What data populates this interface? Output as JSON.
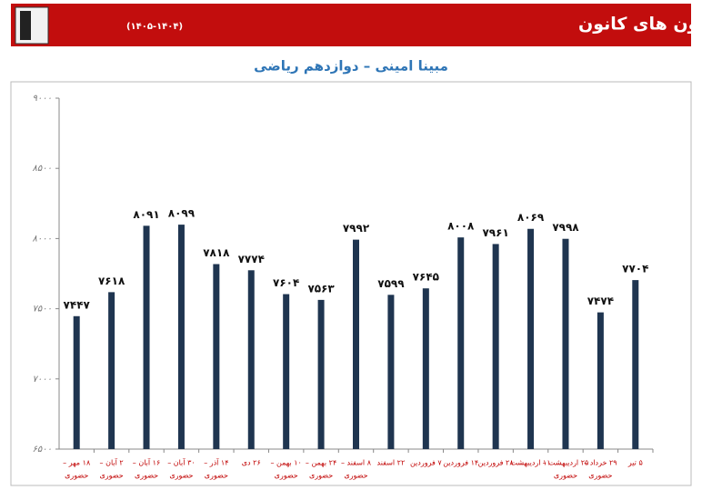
{
  "chart_data": {
    "type": "bar",
    "title": "نمودار تراز کل سال دوازدهم در آزمون های کانون",
    "title_note": "(۱۴۰۵-۱۴۰۴)",
    "subtitle": "مبینا امینی – دوازدهم ریاضی",
    "categories": [
      [
        "۱۸ مهر –",
        "حضوری"
      ],
      [
        "۲ آبان –",
        "حضوری"
      ],
      [
        "۱۶ آبان –",
        "حضوری"
      ],
      [
        "۳۰ آبان –",
        "حضوری"
      ],
      [
        "۱۴ آذر –",
        "حضوری"
      ],
      [
        "۲۶ دی"
      ],
      [
        "۱۰ بهمن –",
        "حضوری"
      ],
      [
        "۲۴ بهمن –",
        "حضوری"
      ],
      [
        "۸ اسفند –",
        "حضوری"
      ],
      [
        "۲۲ اسفند"
      ],
      [
        "۷ فروردین"
      ],
      [
        "۱۴ فروردین"
      ],
      [
        "۲۸ فروردین"
      ],
      [
        "۱۱ اردیبهشت"
      ],
      [
        "۲۵ اردیبهشت –",
        "حضوری"
      ],
      [
        "۲۹ خرداد –",
        "حضوری"
      ],
      [
        "۵ تیر"
      ]
    ],
    "values": [
      7447,
      7618,
      8091,
      8099,
      7818,
      7774,
      7604,
      7563,
      7992,
      7599,
      7645,
      8008,
      7961,
      8069,
      7998,
      7474,
      7704
    ],
    "value_labels": [
      "۷۴۴۷",
      "۷۶۱۸",
      "۸۰۹۱",
      "۸۰۹۹",
      "۷۸۱۸",
      "۷۷۷۴",
      "۷۶۰۴",
      "۷۵۶۳",
      "۷۹۹۲",
      "۷۵۹۹",
      "۷۶۴۵",
      "۸۰۰۸",
      "۷۹۶۱",
      "۸۰۶۹",
      "۷۹۹۸",
      "۷۴۷۴",
      "۷۷۰۴"
    ],
    "color": "#1f3550",
    "ylim": [
      6500,
      9000
    ],
    "yticks": [
      {
        "value": 6500,
        "label": "۶۵۰۰"
      },
      {
        "value": 7000,
        "label": "۷۰۰۰"
      },
      {
        "value": 7500,
        "label": "۷۵۰۰"
      },
      {
        "value": 8000,
        "label": "۸۰۰۰"
      },
      {
        "value": 8500,
        "label": "۸۵۰۰"
      },
      {
        "value": 9000,
        "label": "۹۰۰۰"
      }
    ],
    "grid": false
  }
}
